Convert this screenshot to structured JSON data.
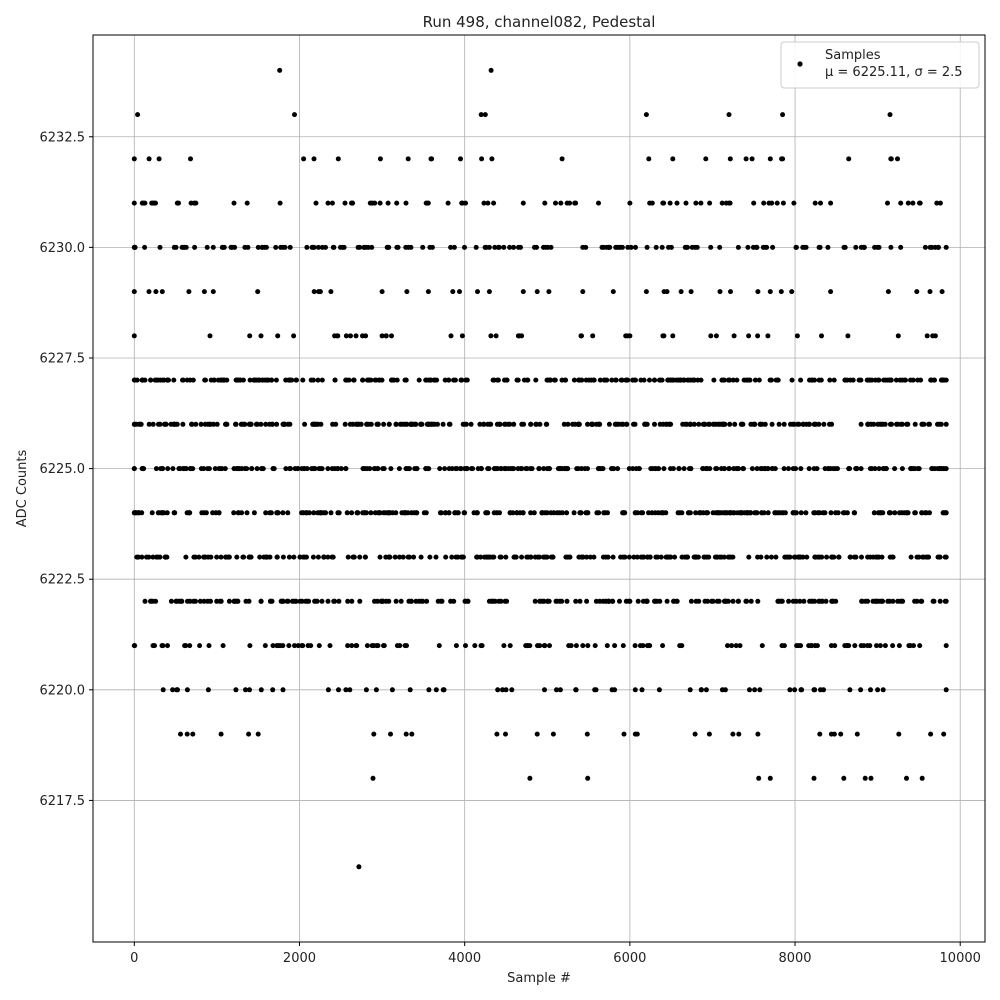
{
  "chart_data": {
    "type": "scatter",
    "title": "Run 498, channel082, Pedestal",
    "xlabel": "Sample #",
    "ylabel": "ADC Counts",
    "xlim": [
      -500,
      10300
    ],
    "ylim": [
      6214.3,
      6234.8
    ],
    "xticks": [
      0,
      2000,
      4000,
      6000,
      8000,
      10000
    ],
    "yticks": [
      6217.5,
      6220.0,
      6222.5,
      6225.0,
      6227.5,
      6230.0,
      6232.5
    ],
    "xtick_labels": [
      "0",
      "2000",
      "4000",
      "6000",
      "8000",
      "10000"
    ],
    "ytick_labels": [
      "6217.5",
      "6220.0",
      "6222.5",
      "6225.0",
      "6227.5",
      "6230.0",
      "6232.5"
    ],
    "grid": true,
    "legend_position": "top-right",
    "series": [
      {
        "name": "Samples",
        "color": "#000000",
        "marker": "dot",
        "x_range": [
          0,
          9830
        ],
        "n_points": 9830,
        "points_approx": [
          [
            1760,
            6234
          ],
          [
            4320,
            6234
          ],
          [
            2720,
            6216
          ],
          [
            40,
            6233
          ],
          [
            1940,
            6233
          ],
          [
            4200,
            6233
          ],
          [
            4250,
            6233
          ],
          [
            6200,
            6233
          ],
          [
            7200,
            6233
          ],
          [
            7850,
            6233
          ],
          [
            9150,
            6233
          ],
          [
            2890,
            6218
          ],
          [
            4790,
            6218
          ],
          [
            5490,
            6218
          ],
          [
            7560,
            6218
          ],
          [
            7700,
            6218
          ],
          [
            8230,
            6218
          ],
          [
            8590,
            6218
          ],
          [
            8850,
            6218
          ],
          [
            8920,
            6218
          ],
          [
            9350,
            6218
          ],
          [
            9540,
            6218
          ]
        ],
        "level_ranges_approx": [
          {
            "y": 6232,
            "segments": [
              [
                0,
                300
              ],
              [
                680,
                700
              ],
              [
                2050,
                2470
              ],
              [
                2980,
                3600
              ],
              [
                3950,
                4330
              ],
              [
                5180,
                5210
              ],
              [
                6230,
                6250
              ],
              [
                6520,
                6540
              ],
              [
                6920,
                7480
              ],
              [
                7700,
                7850
              ],
              [
                8650,
                8670
              ],
              [
                9160,
                9240
              ]
            ]
          },
          {
            "y": 6231,
            "segments": [
              [
                0,
                3560
              ],
              [
                3800,
                4350
              ],
              [
                4710,
                4730
              ],
              [
                4970,
                5620
              ],
              [
                6000,
                6680
              ],
              [
                6800,
                7500
              ],
              [
                7620,
                8430
              ],
              [
                9120,
                9760
              ]
            ]
          },
          {
            "y": 6230,
            "segments": [
              [
                0,
                9830
              ]
            ]
          },
          {
            "y": 6229,
            "segments": [
              [
                0,
                3000
              ],
              [
                3300,
                4300
              ],
              [
                4710,
                5020
              ],
              [
                5430,
                5450
              ],
              [
                5800,
                5820
              ],
              [
                6200,
                6450
              ],
              [
                6620,
                7550
              ],
              [
                7700,
                7960
              ],
              [
                8430,
                8450
              ],
              [
                9130,
                9780
              ]
            ]
          },
          {
            "y": 6228,
            "segments": [
              [
                0,
                2800
              ],
              [
                3000,
                4380
              ],
              [
                4650,
                5550
              ],
              [
                5950,
                6000
              ],
              [
                6400,
                6520
              ],
              [
                6980,
                8320
              ],
              [
                8640,
                8660
              ],
              [
                9250,
                9700
              ]
            ]
          },
          {
            "y": 6227,
            "segments": [
              [
                0,
                9830
              ]
            ]
          },
          {
            "y": 6226,
            "segments": [
              [
                0,
                8800
              ],
              [
                8880,
                9830
              ]
            ]
          },
          {
            "y": 6225,
            "segments": [
              [
                0,
                9830
              ]
            ]
          },
          {
            "y": 6224,
            "segments": [
              [
                0,
                9830
              ]
            ]
          },
          {
            "y": 6223,
            "segments": [
              [
                30,
                9830
              ]
            ]
          },
          {
            "y": 6222,
            "segments": [
              [
                130,
                4040
              ],
              [
                4300,
                9830
              ]
            ]
          },
          {
            "y": 6221,
            "segments": [
              [
                0,
                3900
              ],
              [
                4010,
                5260
              ],
              [
                5290,
                9830
              ]
            ]
          },
          {
            "y": 6220,
            "segments": [
              [
                350,
                1800
              ],
              [
                2350,
                3750
              ],
              [
                4400,
                9830
              ]
            ]
          },
          {
            "y": 6219,
            "segments": [
              [
                560,
                1500
              ],
              [
                2900,
                3360
              ],
              [
                4390,
                6090
              ],
              [
                6790,
                7550
              ],
              [
                8300,
                9800
              ]
            ]
          }
        ]
      }
    ],
    "legend": {
      "entries": [
        "Samples",
        "μ = 6225.11, σ = 2.5"
      ]
    },
    "stats": {
      "mean": 6225.11,
      "sigma": 2.5
    }
  }
}
